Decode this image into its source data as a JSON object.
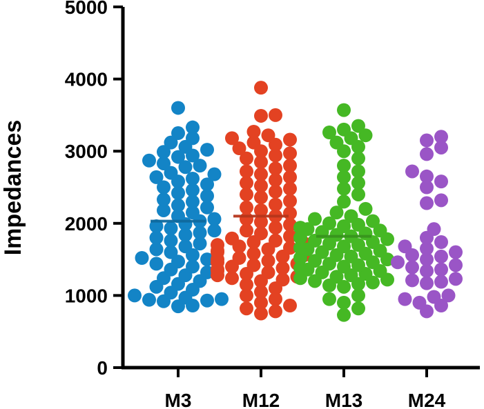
{
  "chart_data": {
    "type": "scatter",
    "ylabel": "Impedances",
    "xlabel": "",
    "title": "",
    "ylim": [
      0,
      5000
    ],
    "yticks": [
      0,
      1000,
      2000,
      3000,
      4000,
      5000
    ],
    "categories": [
      "M3",
      "M12",
      "M13",
      "M24"
    ],
    "grid": false,
    "series": [
      {
        "category": "M3",
        "color": "#1384c6",
        "mean": 2030,
        "values": [
          3600,
          3330,
          3250,
          3180,
          3120,
          3060,
          3020,
          2990,
          2940,
          2920,
          2870,
          2830,
          2800,
          2780,
          2700,
          2680,
          2640,
          2620,
          2580,
          2540,
          2500,
          2460,
          2420,
          2380,
          2330,
          2300,
          2250,
          2220,
          2180,
          2150,
          2100,
          2060,
          2030,
          1990,
          1960,
          1930,
          1900,
          1870,
          1840,
          1800,
          1760,
          1720,
          1680,
          1640,
          1600,
          1560,
          1520,
          1500,
          1470,
          1440,
          1400,
          1360,
          1320,
          1280,
          1240,
          1200,
          1160,
          1120,
          1080,
          1040,
          1000,
          970,
          950,
          940,
          930,
          920,
          860,
          850
        ]
      },
      {
        "category": "M12",
        "color": "#e34222",
        "mean": 2100,
        "values": [
          3880,
          3500,
          3490,
          3270,
          3220,
          3180,
          3160,
          3120,
          3090,
          3040,
          3000,
          2970,
          2940,
          2900,
          2850,
          2800,
          2760,
          2720,
          2680,
          2640,
          2600,
          2560,
          2520,
          2480,
          2440,
          2400,
          2360,
          2310,
          2260,
          2220,
          2180,
          2140,
          2100,
          2060,
          2020,
          1980,
          1940,
          1900,
          1860,
          1820,
          1790,
          1760,
          1740,
          1720,
          1700,
          1680,
          1660,
          1640,
          1620,
          1600,
          1580,
          1560,
          1540,
          1520,
          1500,
          1480,
          1460,
          1440,
          1420,
          1400,
          1380,
          1360,
          1340,
          1320,
          1300,
          1280,
          1260,
          1240,
          1220,
          1200,
          1150,
          1100,
          1050,
          1000,
          950,
          900,
          860,
          820,
          780,
          750
        ]
      },
      {
        "category": "M13",
        "color": "#45b824",
        "mean": 1820,
        "values": [
          3570,
          3350,
          3300,
          3260,
          3220,
          3180,
          3120,
          3060,
          3000,
          2900,
          2800,
          2720,
          2640,
          2560,
          2480,
          2400,
          2300,
          2200,
          2150,
          2100,
          2060,
          2030,
          2000,
          1980,
          1960,
          1940,
          1920,
          1900,
          1880,
          1860,
          1840,
          1820,
          1800,
          1780,
          1760,
          1740,
          1720,
          1700,
          1680,
          1660,
          1640,
          1620,
          1600,
          1580,
          1560,
          1540,
          1520,
          1500,
          1480,
          1460,
          1440,
          1420,
          1400,
          1380,
          1360,
          1340,
          1320,
          1300,
          1280,
          1260,
          1240,
          1220,
          1200,
          1180,
          1160,
          1140,
          1120,
          1000,
          950,
          900,
          820,
          730
        ]
      },
      {
        "category": "M24",
        "color": "#9a55c6",
        "mean": null,
        "values": [
          3200,
          3150,
          3050,
          2960,
          2720,
          2650,
          2580,
          2500,
          2320,
          2280,
          1920,
          1800,
          1740,
          1680,
          1650,
          1600,
          1560,
          1540,
          1500,
          1460,
          1420,
          1390,
          1360,
          1340,
          1230,
          1210,
          1190,
          1170,
          1000,
          980,
          950,
          900,
          860,
          780
        ]
      }
    ]
  }
}
